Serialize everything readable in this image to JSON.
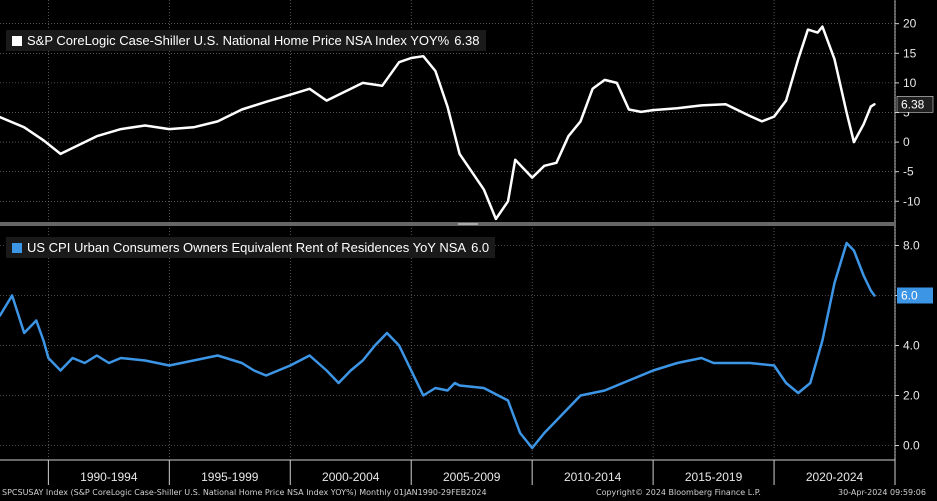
{
  "chart_data": [
    {
      "type": "line",
      "title": "S&P CoreLogic Case-Shiller U.S. National Home Price NSA Index YOY%",
      "last_value": "6.38",
      "color": "#ffffff",
      "ylim": [
        -13.5,
        24
      ],
      "yticks": [
        "20",
        "15",
        "10",
        "5",
        "0",
        "-5",
        "-10"
      ],
      "x": [
        1988.0,
        1989.0,
        1989.8,
        1990.5,
        1991.0,
        1991.5,
        1992.0,
        1993.0,
        1994.0,
        1995.0,
        1996.0,
        1997.0,
        1998.0,
        1999.0,
        2000.0,
        2000.8,
        2001.5,
        2002.0,
        2003.0,
        2003.8,
        2004.5,
        2005.0,
        2005.5,
        2006.0,
        2006.5,
        2007.0,
        2008.0,
        2008.5,
        2009.0,
        2009.3,
        2010.0,
        2010.5,
        2011.0,
        2011.5,
        2012.0,
        2012.5,
        2013.0,
        2013.5,
        2014.0,
        2014.5,
        2015.0,
        2016.0,
        2017.0,
        2018.0,
        2019.0,
        2019.5,
        2020.0,
        2020.5,
        2021.0,
        2021.4,
        2021.8,
        2022.0,
        2022.5,
        2023.0,
        2023.3,
        2023.7,
        2024.0,
        2024.15
      ],
      "values": [
        4.2,
        2.5,
        0.3,
        -2,
        -1,
        0,
        1,
        2.2,
        2.8,
        2.2,
        2.5,
        3.5,
        5.5,
        6.8,
        8,
        9,
        7,
        8,
        10,
        9.5,
        13.5,
        14.2,
        14.5,
        12,
        6,
        -2,
        -8,
        -13,
        -10,
        -3,
        -6,
        -4,
        -3.5,
        1,
        3.5,
        9,
        10.5,
        10,
        5.5,
        5.1,
        5.4,
        5.7,
        6.2,
        6.4,
        4.4,
        3.5,
        4.3,
        7,
        14,
        19,
        18.5,
        19.5,
        14,
        5,
        0,
        3,
        6,
        6.38
      ]
    },
    {
      "type": "line",
      "title": "US CPI Urban Consumers Owners Equivalent Rent of Residences YoY NSA",
      "last_value": "6.0",
      "color": "#3d95e6",
      "ylim": [
        -0.5,
        8.7
      ],
      "yticks": [
        "8.0",
        "6.0",
        "4.0",
        "2.0",
        "0.0"
      ],
      "x": [
        1988.0,
        1988.5,
        1989.0,
        1989.5,
        1989.8,
        1990.0,
        1990.5,
        1991.0,
        1991.5,
        1992.0,
        1992.5,
        1993.0,
        1994.0,
        1995.0,
        1996.0,
        1997.0,
        1998.0,
        1998.5,
        1999.0,
        1999.5,
        2000.0,
        2000.8,
        2001.5,
        2002.0,
        2002.5,
        2003.0,
        2003.5,
        2004.0,
        2004.5,
        2005.0,
        2005.5,
        2006.0,
        2006.5,
        2006.8,
        2007.0,
        2008.0,
        2009.0,
        2009.5,
        2010.0,
        2010.5,
        2011.0,
        2012.0,
        2013.0,
        2014.0,
        2015.0,
        2016.0,
        2017.0,
        2017.5,
        2018.0,
        2019.0,
        2020.0,
        2020.5,
        2021.0,
        2021.5,
        2022.0,
        2022.5,
        2023.0,
        2023.3,
        2023.7,
        2024.0,
        2024.15
      ],
      "values": [
        5.2,
        6.0,
        4.5,
        5.0,
        4.2,
        3.5,
        3.0,
        3.5,
        3.3,
        3.6,
        3.3,
        3.5,
        3.4,
        3.2,
        3.4,
        3.6,
        3.3,
        3.0,
        2.8,
        3.0,
        3.2,
        3.6,
        3.0,
        2.5,
        3.0,
        3.4,
        4.0,
        4.5,
        4.0,
        3.0,
        2.0,
        2.3,
        2.2,
        2.5,
        2.4,
        2.3,
        1.8,
        0.5,
        -0.1,
        0.5,
        1.0,
        2.0,
        2.2,
        2.6,
        3.0,
        3.3,
        3.5,
        3.3,
        3.3,
        3.3,
        3.2,
        2.5,
        2.1,
        2.5,
        4.2,
        6.5,
        8.1,
        7.8,
        6.8,
        6.2,
        6.0
      ]
    }
  ],
  "x_axis": {
    "labels": [
      "1990-1994",
      "1995-1999",
      "2000-2004",
      "2005-2009",
      "2010-2014",
      "2015-2019",
      "2020-2024"
    ],
    "ticks": [
      1990.0,
      1995.0,
      2000.0,
      2005.0,
      2010.0,
      2015.0,
      2020.0,
      2025.0
    ],
    "range": [
      1988.0,
      2025.0
    ]
  },
  "footer": {
    "left": "SPCSUSAY Index (S&P CoreLogic Case-Shiller U.S. National Home Price NSA Index YOY%)  Monthly 01JAN1990-29FEB2024",
    "center": "Copyright© 2024 Bloomberg Finance L.P.",
    "right": "30-Apr-2024 09:59:06"
  },
  "colors": {
    "background": "#000000",
    "grid": "#8a8a8a",
    "label_bg": "#1f1f1f",
    "separator": "#666666"
  }
}
